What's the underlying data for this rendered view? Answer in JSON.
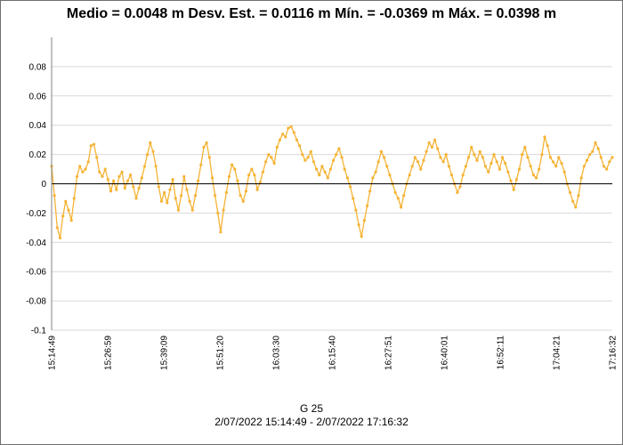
{
  "chart_data": {
    "type": "line",
    "title": "Medio = 0.0048 m  Desv. Est. = 0.0116 m  Mín. = -0.0369 m  Máx. = 0.0398 m",
    "series_name": "G 25",
    "date_range": "2/07/2022 15:14:49 - 2/07/2022 17:16:32",
    "xlabel": "",
    "ylabel": "",
    "ylim": [
      -0.1,
      0.1
    ],
    "y_ticks": [
      0.08,
      0.06,
      0.04,
      0.02,
      0,
      -0.02,
      -0.04,
      -0.06,
      -0.08,
      -0.1
    ],
    "y_tick_labels": [
      "0.08",
      "0.06",
      "0.04",
      "0.02",
      "0",
      "-0.02",
      "-0.04",
      "-0.06",
      "-0.08",
      "-0.1"
    ],
    "x_tick_labels": [
      "15:14:49",
      "15:26:59",
      "15:39:09",
      "15:51:20",
      "16:03:30",
      "16:15:40",
      "16:27:51",
      "16:40:01",
      "16:52:11",
      "17:04:21",
      "17:16:32"
    ],
    "series": [
      {
        "name": "G 25",
        "color": "#f5b335",
        "values": [
          0.012,
          -0.008,
          -0.03,
          -0.037,
          -0.022,
          -0.012,
          -0.018,
          -0.025,
          -0.01,
          0.005,
          0.012,
          0.008,
          0.01,
          0.015,
          0.026,
          0.027,
          0.018,
          0.008,
          0.005,
          0.01,
          0.003,
          -0.005,
          0.002,
          -0.004,
          0.005,
          0.008,
          -0.003,
          0.002,
          0.006,
          -0.002,
          -0.01,
          -0.003,
          0.004,
          0.012,
          0.02,
          0.028,
          0.022,
          0.012,
          -0.002,
          -0.012,
          -0.006,
          -0.013,
          -0.004,
          0.003,
          -0.01,
          -0.018,
          -0.008,
          0.005,
          -0.004,
          -0.012,
          -0.018,
          -0.008,
          0.002,
          0.013,
          0.025,
          0.028,
          0.018,
          0.004,
          -0.008,
          -0.02,
          -0.033,
          -0.018,
          -0.006,
          0.005,
          0.013,
          0.01,
          0.002,
          -0.008,
          -0.012,
          -0.005,
          0.006,
          0.01,
          0.006,
          -0.004,
          0.001,
          0.008,
          0.015,
          0.02,
          0.018,
          0.014,
          0.025,
          0.03,
          0.034,
          0.032,
          0.038,
          0.039,
          0.035,
          0.03,
          0.026,
          0.02,
          0.016,
          0.018,
          0.022,
          0.015,
          0.01,
          0.006,
          0.012,
          0.008,
          0.004,
          0.01,
          0.016,
          0.02,
          0.024,
          0.018,
          0.01,
          0.004,
          -0.002,
          -0.01,
          -0.018,
          -0.028,
          -0.036,
          -0.025,
          -0.015,
          -0.005,
          0.004,
          0.008,
          0.015,
          0.022,
          0.018,
          0.012,
          0.006,
          0.0,
          -0.006,
          -0.01,
          -0.016,
          -0.008,
          0.0,
          0.006,
          0.012,
          0.018,
          0.015,
          0.01,
          0.016,
          0.022,
          0.028,
          0.025,
          0.03,
          0.024,
          0.018,
          0.015,
          0.02,
          0.012,
          0.006,
          0.0,
          -0.006,
          -0.002,
          0.006,
          0.012,
          0.018,
          0.025,
          0.02,
          0.016,
          0.022,
          0.018,
          0.012,
          0.008,
          0.014,
          0.02,
          0.015,
          0.01,
          0.018,
          0.014,
          0.008,
          0.002,
          -0.004,
          0.003,
          0.01,
          0.02,
          0.025,
          0.018,
          0.012,
          0.006,
          0.004,
          0.01,
          0.02,
          0.032,
          0.026,
          0.018,
          0.015,
          0.012,
          0.018,
          0.014,
          0.008,
          0.0,
          -0.006,
          -0.012,
          -0.016,
          -0.008,
          0.004,
          0.012,
          0.016,
          0.02,
          0.022,
          0.028,
          0.024,
          0.018,
          0.012,
          0.01,
          0.015,
          0.018
        ]
      }
    ]
  }
}
